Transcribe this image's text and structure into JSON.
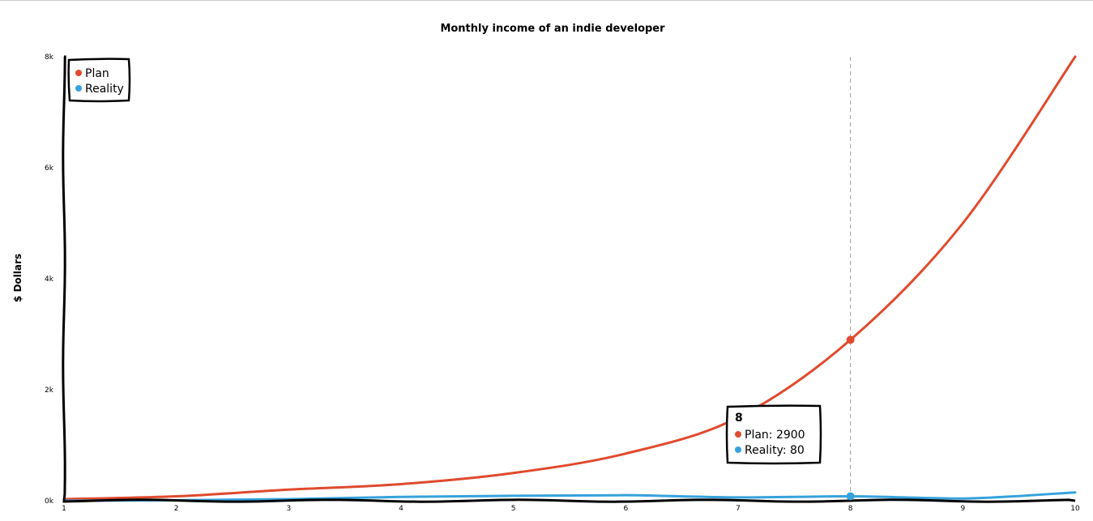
{
  "chart_data": {
    "type": "line",
    "title": "Monthly income of an indie developer",
    "xlabel": "",
    "ylabel": "$ Dollars",
    "x": [
      1,
      2,
      3,
      4,
      5,
      6,
      7,
      8,
      9,
      10
    ],
    "xlim": [
      1,
      10
    ],
    "ylim": [
      0,
      8000
    ],
    "x_ticks": [
      "1",
      "2",
      "3",
      "4",
      "5",
      "6",
      "7",
      "8",
      "9",
      "10"
    ],
    "y_ticks": [
      {
        "value": 0,
        "label": "0k"
      },
      {
        "value": 2000,
        "label": "2k"
      },
      {
        "value": 4000,
        "label": "4k"
      },
      {
        "value": 6000,
        "label": "6k"
      },
      {
        "value": 8000,
        "label": "8k"
      }
    ],
    "series": [
      {
        "name": "Plan",
        "color": "#e04a2e",
        "values": [
          30,
          80,
          200,
          300,
          500,
          850,
          1500,
          2900,
          5000,
          8000
        ]
      },
      {
        "name": "Reality",
        "color": "#36a2dc",
        "values": [
          0,
          10,
          30,
          70,
          90,
          100,
          60,
          80,
          40,
          150
        ]
      }
    ],
    "legend": {
      "position": "top-left"
    },
    "tooltip": {
      "x_label": "8",
      "x": 8,
      "lines": [
        "Plan: 2900",
        "Reality: 80"
      ]
    }
  }
}
